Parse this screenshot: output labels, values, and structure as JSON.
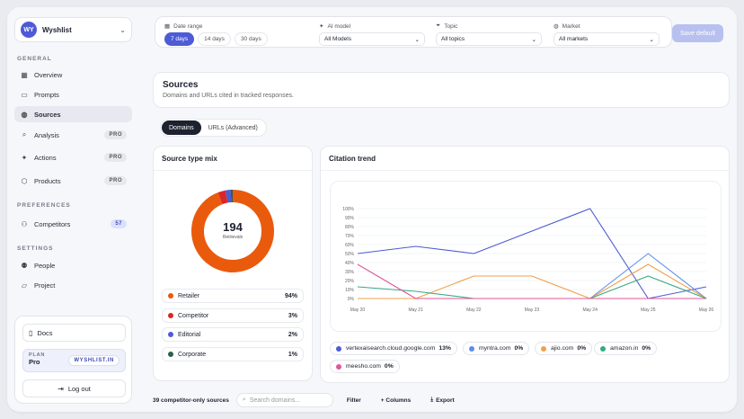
{
  "sidebar": {
    "workspace": {
      "initials": "WY",
      "name": "Wyshlist"
    },
    "sections": {
      "general": "GENERAL",
      "preferences": "PREFERENCES",
      "settings": "SETTINGS"
    },
    "items": [
      {
        "label": "Overview"
      },
      {
        "label": "Prompts"
      },
      {
        "label": "Sources"
      },
      {
        "label": "Analysis",
        "badge": "PRO"
      },
      {
        "label": "Actions",
        "badge": "PRO"
      },
      {
        "label": "Products",
        "badge": "PRO"
      },
      {
        "label": "Competitors",
        "badge": "57"
      },
      {
        "label": "People"
      },
      {
        "label": "Project"
      }
    ],
    "docs": "Docs",
    "plan": {
      "label": "PLAN",
      "name": "Pro",
      "site": "WYSHLIST.IN"
    },
    "logout": "Log out"
  },
  "filters": {
    "date_range": {
      "label": "Date range",
      "options": [
        "7 days",
        "14 days",
        "30 days"
      ],
      "selected": "7 days"
    },
    "ai_model": {
      "label": "AI model",
      "value": "All Models"
    },
    "topic": {
      "label": "Topic",
      "value": "All topics"
    },
    "market": {
      "label": "Market",
      "value": "All markets"
    },
    "save": "Save default"
  },
  "page": {
    "title": "Sources",
    "subtitle": "Domains and URLs cited in tracked responses."
  },
  "tabs": [
    "Domains",
    "URLs (Advanced)"
  ],
  "source_mix": {
    "title": "Source type mix",
    "total": "194",
    "total_label": "Retrievals",
    "rows": [
      {
        "name": "Retailer",
        "value": "94%",
        "pct": 94,
        "color": "#ea5a0c"
      },
      {
        "name": "Competitor",
        "value": "3%",
        "pct": 3,
        "color": "#dc2626"
      },
      {
        "name": "Editorial",
        "value": "2%",
        "pct": 2,
        "color": "#4d5bd6"
      },
      {
        "name": "Corporate",
        "value": "1%",
        "pct": 1,
        "color": "#2f5d50"
      }
    ]
  },
  "trend": {
    "title": "Citation trend",
    "legend": [
      {
        "name": "vertexaisearch.cloud.google.com",
        "value": "13%",
        "color": "#4d5bd6"
      },
      {
        "name": "myntra.com",
        "value": "0%",
        "color": "#5b8def"
      },
      {
        "name": "ajio.com",
        "value": "0%",
        "color": "#f0a04b"
      },
      {
        "name": "amazon.in",
        "value": "0%",
        "color": "#3aa881"
      },
      {
        "name": "meesho.com",
        "value": "0%",
        "color": "#e0559a"
      }
    ]
  },
  "chart_data": {
    "type": "line",
    "categories": [
      "May 20",
      "May 21",
      "May 22",
      "May 23",
      "May 24",
      "May 25",
      "May 26"
    ],
    "yticks": [
      "0%",
      "10%",
      "20%",
      "30%",
      "40%",
      "50%",
      "60%",
      "70%",
      "80%",
      "90%",
      "100%"
    ],
    "ylim": [
      0,
      100
    ],
    "series": [
      {
        "name": "vertexaisearch.cloud.google.com",
        "color": "#4d5bd6",
        "values": [
          50,
          58,
          50,
          75,
          100,
          0,
          13
        ]
      },
      {
        "name": "myntra.com",
        "color": "#5b8def",
        "values": [
          0,
          0,
          0,
          0,
          0,
          50,
          0
        ]
      },
      {
        "name": "ajio.com",
        "color": "#f0a04b",
        "values": [
          0,
          0,
          25,
          25,
          0,
          38,
          0
        ]
      },
      {
        "name": "amazon.in",
        "color": "#3aa881",
        "values": [
          13,
          8,
          0,
          0,
          0,
          25,
          0
        ]
      },
      {
        "name": "meesho.com",
        "color": "#e0559a",
        "values": [
          38,
          0,
          0,
          0,
          0,
          0,
          0
        ]
      }
    ]
  },
  "bottom": {
    "count_label": "39 competitor-only sources",
    "search_placeholder": "Search domains...",
    "filter": "Filter",
    "columns": "+ Columns",
    "export": "Export"
  }
}
